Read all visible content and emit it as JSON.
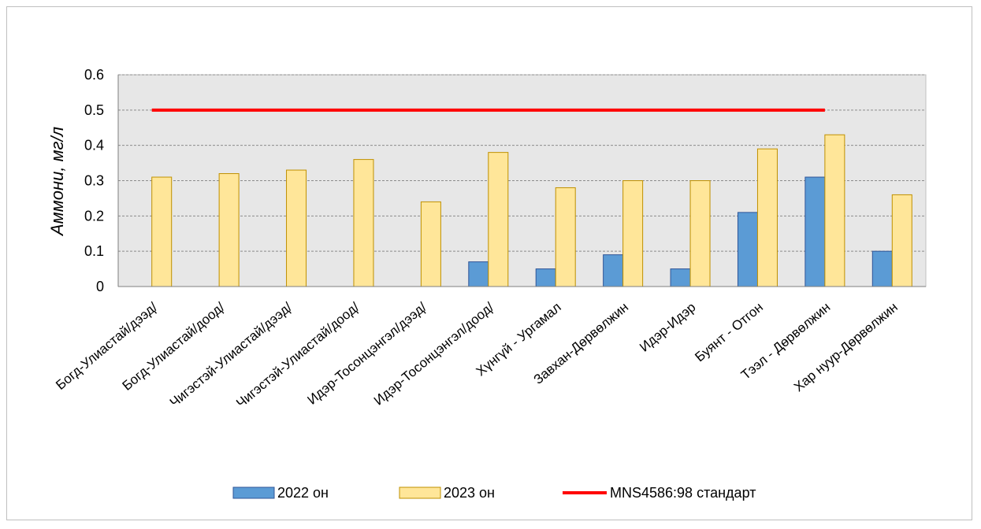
{
  "chart_data": {
    "type": "bar",
    "ylabel": "Аммони, мг/л",
    "xlabel": "",
    "ylim": [
      0,
      0.6
    ],
    "yticks": [
      "0",
      "0.1",
      "0.2",
      "0.3",
      "0.4",
      "0.5",
      "0.6"
    ],
    "grid": true,
    "legend_position": "bottom",
    "categories": [
      "Богд-Улиастай/дээд/",
      "Богд-Улиастай/доод/",
      "Чигэстэй-Улиастай/дээд/",
      "Чигэстэй-Улиастай/доод/",
      "Идэр-Тосонцэнгэл/дээд/",
      "Идэр-Тосонцэнгэл/доод/",
      "Хүнгүй - Ургамал",
      "Завхан-Дөрвөлжин",
      "Идэр-Идэр",
      "Буянт - Отгон",
      "Тээл - Дөрвөлжин",
      "Хар нуур-Дөрвөлжин"
    ],
    "series": [
      {
        "name": "2022 он",
        "color": "#5b9bd5",
        "values": [
          null,
          null,
          null,
          null,
          null,
          0.07,
          0.05,
          0.09,
          0.05,
          0.21,
          0.31,
          0.1
        ]
      },
      {
        "name": "2023 он",
        "color": "#ffe699",
        "values": [
          0.31,
          0.32,
          0.33,
          0.36,
          0.24,
          0.38,
          0.28,
          0.3,
          0.3,
          0.39,
          0.43,
          0.26
        ]
      }
    ],
    "reference_line": {
      "name": "MNS4586:98 стандарт",
      "value": 0.5,
      "color": "#ff0000",
      "from_category": 0,
      "to_category": 10
    }
  }
}
